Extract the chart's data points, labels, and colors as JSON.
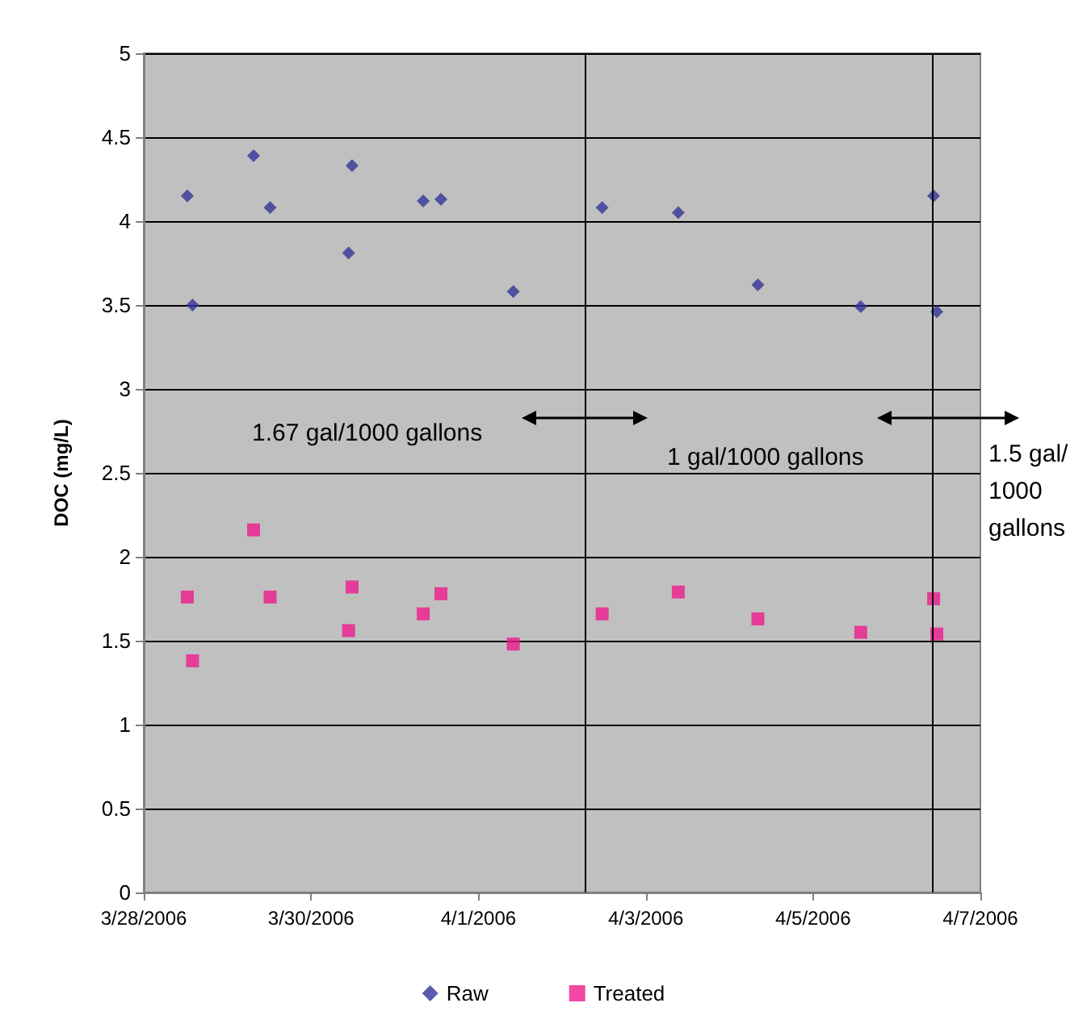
{
  "chart_data": {
    "type": "scatter",
    "ylabel": "DOC (mg/L)",
    "x": [
      "2006-03-28T12:30",
      "2006-03-28T14:00",
      "2006-03-29T07:30",
      "2006-03-29T12:15",
      "2006-03-30T10:45",
      "2006-03-30T11:45",
      "2006-03-31T08:10",
      "2006-03-31T13:15",
      "2006-04-01T10:00",
      "2006-04-02T11:30",
      "2006-04-03T09:20",
      "2006-04-04T08:10",
      "2006-04-05T13:40",
      "2006-04-06T10:35",
      "2006-04-06T11:30"
    ],
    "series": [
      {
        "name": "Raw",
        "color": "#333399",
        "marker": "diamond",
        "values": [
          4.15,
          3.5,
          4.39,
          4.08,
          3.81,
          4.33,
          4.12,
          4.13,
          3.58,
          4.08,
          4.05,
          3.62,
          3.49,
          4.15,
          3.46
        ]
      },
      {
        "name": "Treated",
        "color": "#ec1a8c",
        "marker": "square",
        "values": [
          1.76,
          1.38,
          2.16,
          1.76,
          1.56,
          1.82,
          1.66,
          1.78,
          1.48,
          1.66,
          1.79,
          1.63,
          1.55,
          1.75,
          1.54
        ]
      }
    ],
    "xlim": [
      "2006-03-28",
      "2006-04-07"
    ],
    "xticks": [
      {
        "value": "2006-03-28",
        "label": "3/28/2006"
      },
      {
        "value": "2006-03-30",
        "label": "3/30/2006"
      },
      {
        "value": "2006-04-01",
        "label": "4/1/2006"
      },
      {
        "value": "2006-04-03",
        "label": "4/3/2006"
      },
      {
        "value": "2006-04-05",
        "label": "4/5/2006"
      },
      {
        "value": "2006-04-07",
        "label": "4/7/2006"
      }
    ],
    "ylim": [
      0,
      5
    ],
    "yticks": [
      0,
      0.5,
      1,
      1.5,
      2,
      2.5,
      3,
      3.5,
      4,
      4.5,
      5
    ],
    "ref_lines": [
      {
        "axis": "x",
        "value": "2006-04-02T06:30",
        "color": "#000000"
      },
      {
        "axis": "x",
        "value": "2006-04-06T10:00",
        "color": "#000000"
      }
    ],
    "annotations": [
      "1.67 gal/1000 gallons",
      "1 gal/1000 gallons",
      "1.5 gal/\n1000\ngallons"
    ],
    "grid": "y",
    "legend": "bottom"
  }
}
